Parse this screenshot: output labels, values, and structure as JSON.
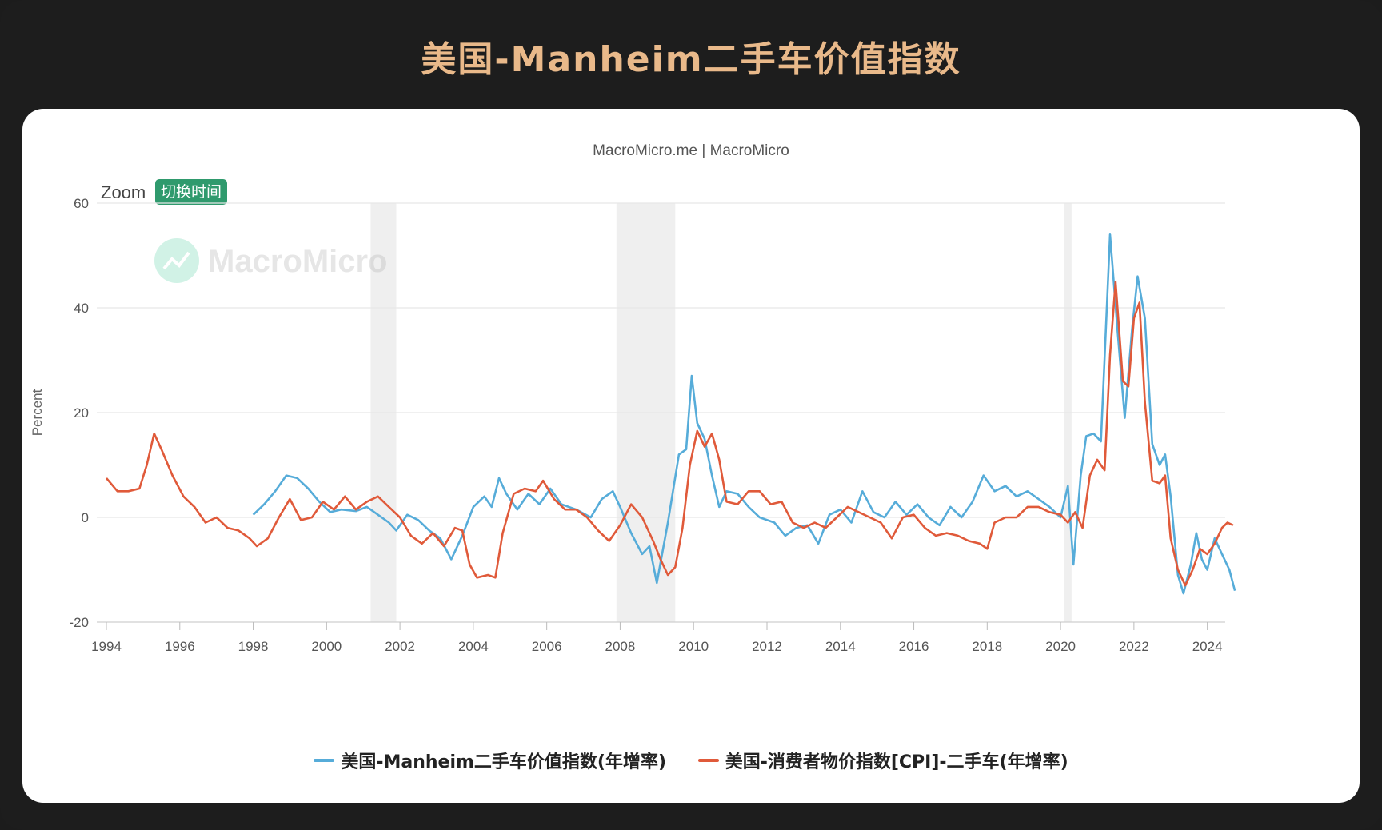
{
  "banner": {
    "title": "美国-Manheim二手车价值指数",
    "title_color": "#e9b98a"
  },
  "chart_header": {
    "credit": "MacroMicro.me | MacroMicro"
  },
  "zoom": {
    "label": "Zoom",
    "button": "切换时间"
  },
  "watermark": {
    "text": "MacroMicro",
    "icon": "macromicro-logo-icon"
  },
  "chart_data": {
    "type": "line",
    "ylabel": "Percent",
    "ylim": [
      -20,
      60
    ],
    "yticks": [
      60,
      40,
      20,
      0,
      -20
    ],
    "xlim": [
      1994,
      2024.4
    ],
    "xticks": [
      "1994",
      "1996",
      "1998",
      "2000",
      "2002",
      "2004",
      "2006",
      "2008",
      "2010",
      "2012",
      "2014",
      "2016",
      "2018",
      "2020",
      "2022",
      "2024"
    ],
    "grid": true,
    "legend_position": "bottom",
    "recessions": [
      [
        2001.2,
        2001.9
      ],
      [
        2007.9,
        2009.5
      ],
      [
        2020.1,
        2020.3
      ]
    ],
    "series": [
      {
        "name": "美国-Manheim二手车价值指数(年增率)",
        "color": "#56acd9",
        "points": [
          [
            1998.0,
            0.5
          ],
          [
            1998.3,
            2.5
          ],
          [
            1998.6,
            5
          ],
          [
            1998.9,
            8
          ],
          [
            1999.2,
            7.5
          ],
          [
            1999.5,
            5.5
          ],
          [
            1999.8,
            3
          ],
          [
            2000.1,
            1
          ],
          [
            2000.4,
            1.5
          ],
          [
            2000.8,
            1.2
          ],
          [
            2001.1,
            2
          ],
          [
            2001.4,
            0.5
          ],
          [
            2001.7,
            -1
          ],
          [
            2001.9,
            -2.5
          ],
          [
            2002.2,
            0.5
          ],
          [
            2002.5,
            -0.5
          ],
          [
            2002.8,
            -2.5
          ],
          [
            2003.1,
            -4
          ],
          [
            2003.4,
            -8
          ],
          [
            2003.7,
            -3.5
          ],
          [
            2004.0,
            2
          ],
          [
            2004.3,
            4
          ],
          [
            2004.5,
            2
          ],
          [
            2004.7,
            7.5
          ],
          [
            2004.9,
            4.5
          ],
          [
            2005.2,
            1.5
          ],
          [
            2005.5,
            4.5
          ],
          [
            2005.8,
            2.5
          ],
          [
            2006.1,
            5.5
          ],
          [
            2006.4,
            2.5
          ],
          [
            2006.8,
            1.5
          ],
          [
            2007.2,
            0
          ],
          [
            2007.5,
            3.5
          ],
          [
            2007.8,
            5
          ],
          [
            2008.0,
            2
          ],
          [
            2008.3,
            -3
          ],
          [
            2008.6,
            -7
          ],
          [
            2008.8,
            -5.5
          ],
          [
            2009.0,
            -12.5
          ],
          [
            2009.3,
            -1
          ],
          [
            2009.6,
            12
          ],
          [
            2009.8,
            13
          ],
          [
            2009.95,
            27
          ],
          [
            2010.1,
            18
          ],
          [
            2010.3,
            15
          ],
          [
            2010.5,
            8
          ],
          [
            2010.7,
            2
          ],
          [
            2010.9,
            5
          ],
          [
            2011.2,
            4.5
          ],
          [
            2011.5,
            2
          ],
          [
            2011.8,
            0
          ],
          [
            2012.2,
            -1
          ],
          [
            2012.5,
            -3.5
          ],
          [
            2012.8,
            -2
          ],
          [
            2013.1,
            -1.5
          ],
          [
            2013.4,
            -5
          ],
          [
            2013.7,
            0.5
          ],
          [
            2014.0,
            1.5
          ],
          [
            2014.3,
            -1
          ],
          [
            2014.6,
            5
          ],
          [
            2014.9,
            1
          ],
          [
            2015.2,
            0
          ],
          [
            2015.5,
            3
          ],
          [
            2015.8,
            0.5
          ],
          [
            2016.1,
            2.5
          ],
          [
            2016.4,
            0
          ],
          [
            2016.7,
            -1.5
          ],
          [
            2017.0,
            2
          ],
          [
            2017.3,
            0
          ],
          [
            2017.6,
            3
          ],
          [
            2017.9,
            8
          ],
          [
            2018.2,
            5
          ],
          [
            2018.5,
            6
          ],
          [
            2018.8,
            4
          ],
          [
            2019.1,
            5
          ],
          [
            2019.4,
            3.5
          ],
          [
            2019.7,
            2
          ],
          [
            2020.0,
            0
          ],
          [
            2020.2,
            6
          ],
          [
            2020.35,
            -9
          ],
          [
            2020.55,
            8
          ],
          [
            2020.7,
            15.5
          ],
          [
            2020.9,
            16
          ],
          [
            2021.1,
            14.5
          ],
          [
            2021.35,
            54
          ],
          [
            2021.55,
            36
          ],
          [
            2021.75,
            19
          ],
          [
            2021.95,
            36
          ],
          [
            2022.1,
            46
          ],
          [
            2022.3,
            38
          ],
          [
            2022.5,
            14
          ],
          [
            2022.7,
            10
          ],
          [
            2022.85,
            12
          ],
          [
            2023.0,
            4
          ],
          [
            2023.2,
            -11
          ],
          [
            2023.35,
            -14.5
          ],
          [
            2023.55,
            -9
          ],
          [
            2023.7,
            -3
          ],
          [
            2023.85,
            -8
          ],
          [
            2024.0,
            -10
          ],
          [
            2024.2,
            -4
          ],
          [
            2024.4,
            -7
          ],
          [
            2024.6,
            -10
          ],
          [
            2024.75,
            -14
          ]
        ]
      },
      {
        "name": "美国-消费者物价指数[CPI]-二手车(年增率)",
        "color": "#e05a3a",
        "points": [
          [
            1994.0,
            7.5
          ],
          [
            1994.3,
            5
          ],
          [
            1994.6,
            5
          ],
          [
            1994.9,
            5.5
          ],
          [
            1995.1,
            10
          ],
          [
            1995.3,
            16
          ],
          [
            1995.5,
            13
          ],
          [
            1995.8,
            8
          ],
          [
            1996.1,
            4
          ],
          [
            1996.4,
            2
          ],
          [
            1996.7,
            -1
          ],
          [
            1997.0,
            0
          ],
          [
            1997.3,
            -2
          ],
          [
            1997.6,
            -2.5
          ],
          [
            1997.9,
            -4
          ],
          [
            1998.1,
            -5.5
          ],
          [
            1998.4,
            -4
          ],
          [
            1998.7,
            0
          ],
          [
            1999.0,
            3.5
          ],
          [
            1999.3,
            -0.5
          ],
          [
            1999.6,
            0
          ],
          [
            1999.9,
            3
          ],
          [
            2000.2,
            1.5
          ],
          [
            2000.5,
            4
          ],
          [
            2000.8,
            1.5
          ],
          [
            2001.1,
            3
          ],
          [
            2001.4,
            4
          ],
          [
            2001.7,
            2
          ],
          [
            2002.0,
            0
          ],
          [
            2002.3,
            -3.5
          ],
          [
            2002.6,
            -5
          ],
          [
            2002.9,
            -3
          ],
          [
            2003.2,
            -5.5
          ],
          [
            2003.5,
            -2
          ],
          [
            2003.7,
            -2.5
          ],
          [
            2003.9,
            -9
          ],
          [
            2004.1,
            -11.5
          ],
          [
            2004.4,
            -11
          ],
          [
            2004.6,
            -11.5
          ],
          [
            2004.8,
            -3
          ],
          [
            2005.1,
            4.5
          ],
          [
            2005.4,
            5.5
          ],
          [
            2005.7,
            5
          ],
          [
            2005.9,
            7
          ],
          [
            2006.2,
            3.5
          ],
          [
            2006.5,
            1.5
          ],
          [
            2006.8,
            1.5
          ],
          [
            2007.1,
            0
          ],
          [
            2007.4,
            -2.5
          ],
          [
            2007.7,
            -4.5
          ],
          [
            2008.0,
            -1.5
          ],
          [
            2008.3,
            2.5
          ],
          [
            2008.6,
            0
          ],
          [
            2008.9,
            -4.5
          ],
          [
            2009.1,
            -8
          ],
          [
            2009.3,
            -11
          ],
          [
            2009.5,
            -9.5
          ],
          [
            2009.7,
            -2
          ],
          [
            2009.9,
            10
          ],
          [
            2010.1,
            16.5
          ],
          [
            2010.3,
            13.5
          ],
          [
            2010.5,
            16
          ],
          [
            2010.7,
            11
          ],
          [
            2010.9,
            3
          ],
          [
            2011.2,
            2.5
          ],
          [
            2011.5,
            5
          ],
          [
            2011.8,
            5
          ],
          [
            2012.1,
            2.5
          ],
          [
            2012.4,
            3
          ],
          [
            2012.7,
            -1
          ],
          [
            2013.0,
            -2
          ],
          [
            2013.3,
            -1
          ],
          [
            2013.6,
            -2
          ],
          [
            2013.9,
            0
          ],
          [
            2014.2,
            2
          ],
          [
            2014.5,
            1
          ],
          [
            2014.8,
            0
          ],
          [
            2015.1,
            -1
          ],
          [
            2015.4,
            -4
          ],
          [
            2015.7,
            0
          ],
          [
            2016.0,
            0.5
          ],
          [
            2016.3,
            -2
          ],
          [
            2016.6,
            -3.5
          ],
          [
            2016.9,
            -3
          ],
          [
            2017.2,
            -3.5
          ],
          [
            2017.5,
            -4.5
          ],
          [
            2017.8,
            -5
          ],
          [
            2018.0,
            -6
          ],
          [
            2018.2,
            -1
          ],
          [
            2018.5,
            0
          ],
          [
            2018.8,
            0
          ],
          [
            2019.1,
            2
          ],
          [
            2019.4,
            2
          ],
          [
            2019.7,
            1
          ],
          [
            2020.0,
            0.5
          ],
          [
            2020.2,
            -1
          ],
          [
            2020.4,
            1
          ],
          [
            2020.6,
            -2
          ],
          [
            2020.8,
            8
          ],
          [
            2021.0,
            11
          ],
          [
            2021.2,
            9
          ],
          [
            2021.35,
            31
          ],
          [
            2021.5,
            45
          ],
          [
            2021.7,
            26
          ],
          [
            2021.85,
            25
          ],
          [
            2022.0,
            38
          ],
          [
            2022.15,
            41
          ],
          [
            2022.3,
            22
          ],
          [
            2022.5,
            7
          ],
          [
            2022.7,
            6.5
          ],
          [
            2022.85,
            8
          ],
          [
            2023.0,
            -4
          ],
          [
            2023.2,
            -10
          ],
          [
            2023.4,
            -13
          ],
          [
            2023.6,
            -10
          ],
          [
            2023.8,
            -6
          ],
          [
            2024.0,
            -7
          ],
          [
            2024.2,
            -5
          ],
          [
            2024.4,
            -2
          ],
          [
            2024.55,
            -1
          ],
          [
            2024.7,
            -1.5
          ]
        ]
      }
    ]
  }
}
